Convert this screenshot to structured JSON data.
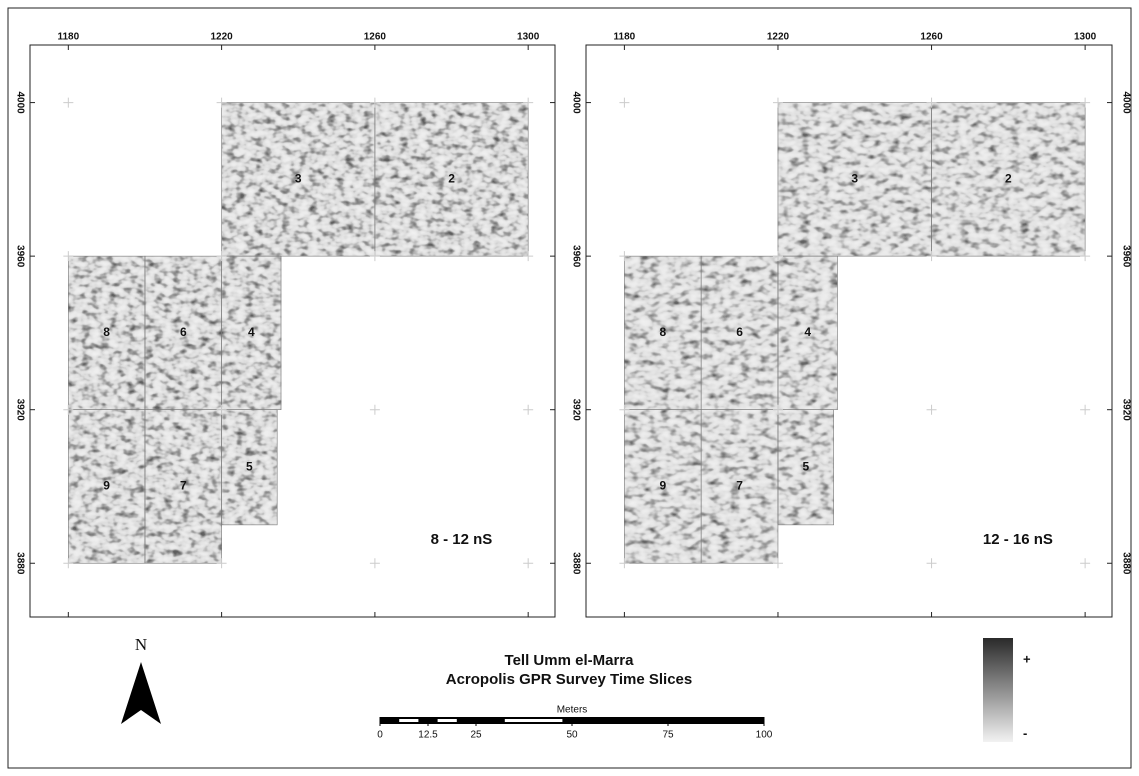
{
  "panels": [
    {
      "title": "8 - 12 nS",
      "xticks": [
        1180,
        1220,
        1260,
        1300
      ],
      "yticks": [
        4000,
        3960,
        3920,
        3880
      ],
      "xlim": [
        1170,
        1307
      ],
      "ylim": [
        3866,
        4015
      ],
      "cells": [
        "3",
        "2",
        "8",
        "6",
        "4",
        "9",
        "7",
        "5"
      ]
    },
    {
      "title": "12 - 16 nS",
      "xticks": [
        1180,
        1220,
        1260,
        1300
      ],
      "yticks": [
        4000,
        3960,
        3920,
        3880
      ],
      "xlim": [
        1170,
        1307
      ],
      "ylim": [
        3866,
        4015
      ],
      "cells": [
        "3",
        "2",
        "8",
        "6",
        "4",
        "9",
        "7",
        "5"
      ]
    }
  ],
  "north": "N",
  "title": [
    "Tell Umm el-Marra",
    "Acropolis GPR Survey Time Slices"
  ],
  "scale": {
    "label": "Meters",
    "ticks": [
      0,
      12.5,
      25,
      50,
      75,
      100
    ]
  },
  "legend": {
    "high": "+",
    "low": "-"
  }
}
